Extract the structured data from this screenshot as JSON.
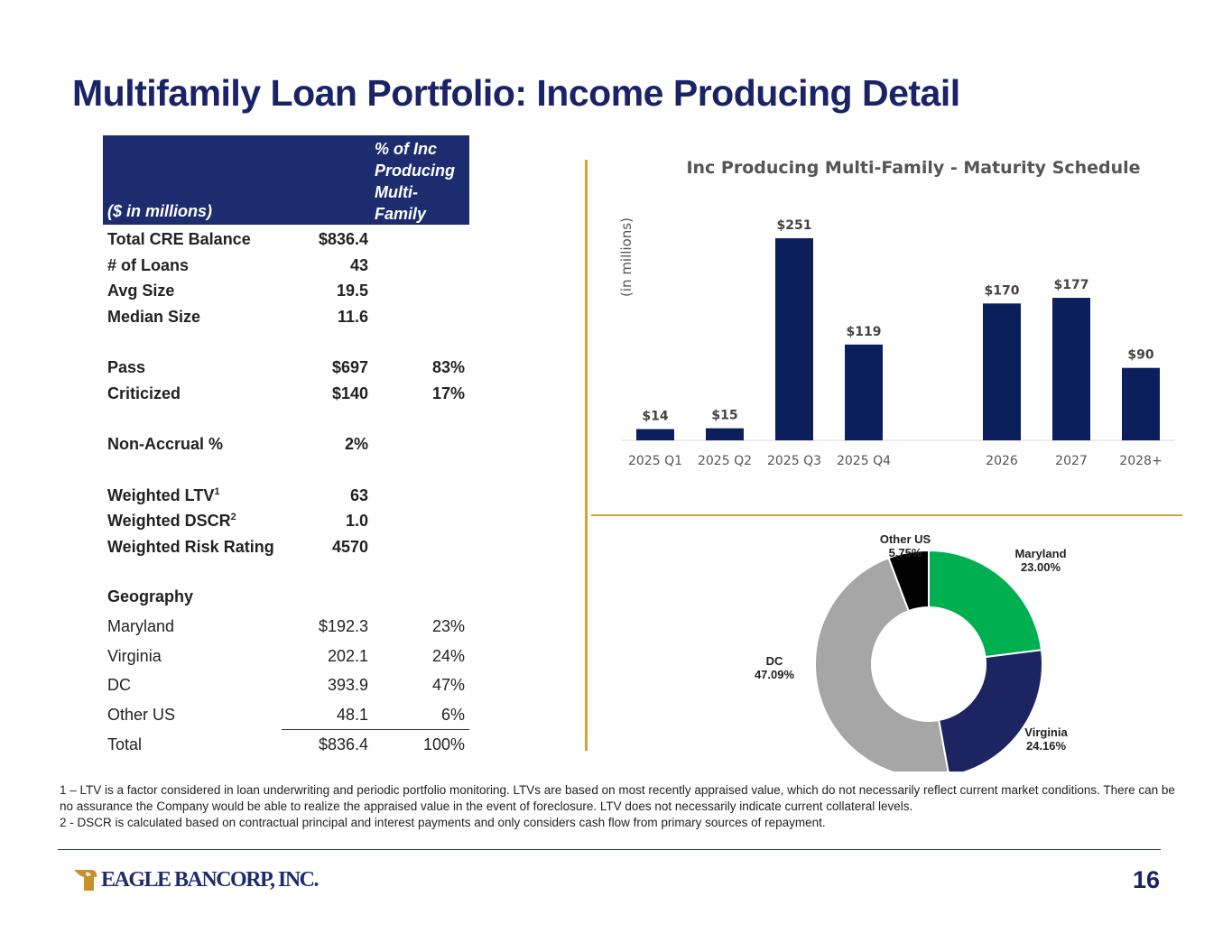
{
  "title": "Multifamily Loan Portfolio: Income Producing Detail",
  "table": {
    "header_units": "($ in millions)",
    "header_pct": [
      "% of Inc",
      "Producing",
      "Multi-",
      "Family"
    ],
    "rows": [
      {
        "label": "Total CRE Balance",
        "value": "$836.4",
        "pct": ""
      },
      {
        "label": "# of Loans",
        "value": "43",
        "pct": ""
      },
      {
        "label": "Avg Size",
        "value": "19.5",
        "pct": ""
      },
      {
        "label": "Median Size",
        "value": "11.6",
        "pct": ""
      },
      {
        "label": "Pass",
        "value": "$697",
        "pct": "83%"
      },
      {
        "label": "Criticized",
        "value": "$140",
        "pct": "17%"
      },
      {
        "label": "Non-Accrual %",
        "value": "2%",
        "pct": ""
      },
      {
        "label": "Weighted LTV",
        "sup": "1",
        "value": "63",
        "pct": ""
      },
      {
        "label": "Weighted DSCR",
        "sup": "2",
        "value": "1.0",
        "pct": ""
      },
      {
        "label": "Weighted Risk Rating",
        "value": "4570",
        "pct": ""
      },
      {
        "label": "Geography",
        "value": "",
        "pct": ""
      },
      {
        "label": "Maryland",
        "value": "$192.3",
        "pct": "23%"
      },
      {
        "label": "Virginia",
        "value": "202.1",
        "pct": "24%"
      },
      {
        "label": "DC",
        "value": "393.9",
        "pct": "47%"
      },
      {
        "label": "Other US",
        "value": "48.1",
        "pct": "6%"
      },
      {
        "label": "Total",
        "value": "$836.4",
        "pct": "100%"
      }
    ]
  },
  "chart_data": [
    {
      "type": "bar",
      "title": "Inc Producing Multi-Family - Maturity Schedule",
      "ylabel": "(in millions)",
      "categories": [
        "2025 Q1",
        "2025 Q2",
        "2025 Q3",
        "2025 Q4",
        "2026",
        "2027",
        "2028+"
      ],
      "values": [
        14,
        15,
        251,
        119,
        170,
        177,
        90
      ],
      "data_labels": [
        "$14",
        "$15",
        "$251",
        "$119",
        "$170",
        "$177",
        "$90"
      ],
      "ylim": [
        0,
        260
      ],
      "grid": false,
      "color": "#0b1f5c"
    },
    {
      "type": "pie",
      "donut": true,
      "slices": [
        {
          "label": "Maryland",
          "value": 23.0,
          "display": "23.00%",
          "color": "#00b050"
        },
        {
          "label": "Virginia",
          "value": 24.16,
          "display": "24.16%",
          "color": "#1c2562"
        },
        {
          "label": "DC",
          "value": 47.09,
          "display": "47.09%",
          "color": "#a6a6a6"
        },
        {
          "label": "Other US",
          "value": 5.75,
          "display": "5.75%",
          "color": "#000000"
        }
      ]
    }
  ],
  "footnotes": [
    "1 – LTV is a factor considered in loan underwriting and periodic portfolio monitoring. LTVs are based on most recently appraised value, which do not necessarily reflect current market conditions. There can be no assurance the Company would be able to realize the appraised value in the event of foreclosure. LTV does not necessarily indicate current collateral levels.",
    "2 - DSCR is calculated based on contractual principal and interest payments and only considers cash flow from primary sources of repayment."
  ],
  "logo_text": "EAGLE BANCORP, INC.",
  "page_number": "16"
}
